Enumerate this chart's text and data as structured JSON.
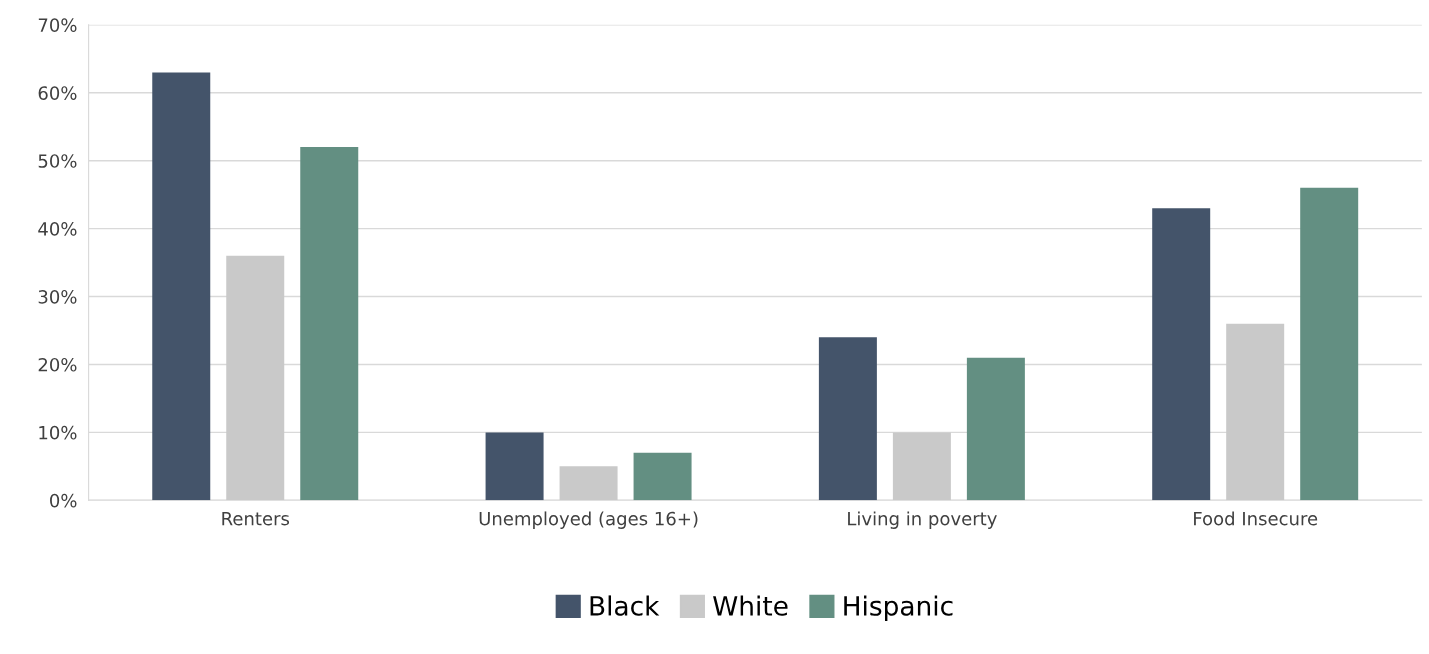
{
  "chart_data": {
    "type": "bar",
    "categories": [
      "Renters",
      "Unemployed (ages 16+)",
      "Living in poverty",
      "Food Insecure"
    ],
    "series": [
      {
        "name": "Black",
        "color": "#44546a",
        "values": [
          63,
          10,
          24,
          43
        ]
      },
      {
        "name": "White",
        "color": "#c9c9c9",
        "values": [
          36,
          5,
          10,
          26
        ]
      },
      {
        "name": "Hispanic",
        "color": "#638f82",
        "values": [
          52,
          7,
          21,
          46
        ]
      }
    ],
    "ylim": [
      0,
      70
    ],
    "yticks": [
      {
        "value": 0,
        "label": "0%"
      },
      {
        "value": 10,
        "label": "10%"
      },
      {
        "value": 20,
        "label": "20%"
      },
      {
        "value": 30,
        "label": "30%"
      },
      {
        "value": 40,
        "label": "40%"
      },
      {
        "value": 50,
        "label": "50%"
      },
      {
        "value": 60,
        "label": "60%"
      },
      {
        "value": 70,
        "label": "70%"
      }
    ],
    "grid": "y",
    "legend": "bottom"
  }
}
